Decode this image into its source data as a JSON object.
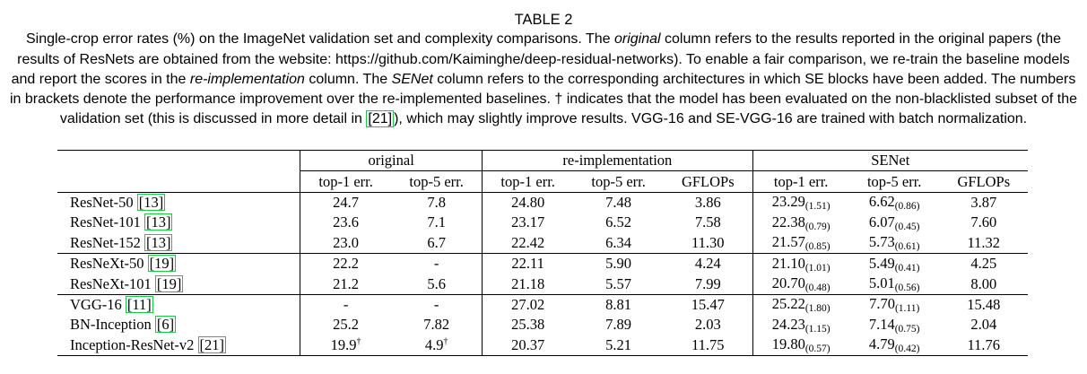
{
  "caption": {
    "title": "TABLE 2",
    "p1": "Single-crop error rates (%) on the ImageNet validation set and complexity comparisons. The ",
    "em1": "original",
    "p2": " column refers to the results reported in the original papers (the results of ResNets are obtained from the website: https://github.com/Kaiminghe/deep-residual-networks). To enable a fair comparison, we re-train the baseline models and report the scores in the ",
    "em2": "re-implementation",
    "p3": " column. The ",
    "em3": "SENet",
    "p4": " column refers to the corresponding architectures in which SE blocks have been added. The numbers in brackets denote the performance improvement over the re-implemented baselines. † indicates that the model has been evaluated on the non-blacklisted subset of the validation set (this is discussed in more detail in ",
    "cite": "[21]",
    "p5": "), which may slightly improve results. VGG-16 and SE-VGG-16 are trained with batch normalization."
  },
  "table": {
    "groups": {
      "original": "original",
      "reimpl": "re-implementation",
      "senet": "SENet"
    },
    "subheaders": {
      "orig_top1": "top-1 err.",
      "orig_top5": "top-5 err.",
      "re_top1": "top-1 err.",
      "re_top5": "top-5 err.",
      "re_gflops": "GFLOPs",
      "se_top1": "top-1 err.",
      "se_top5": "top-5 err.",
      "se_gflops": "GFLOPs"
    },
    "rows": [
      {
        "model": "ResNet-50",
        "ref": "[13]",
        "orig_top1": "24.7",
        "orig_top5": "7.8",
        "re_top1": "24.80",
        "re_top5": "7.48",
        "re_gflops": "3.86",
        "se_top1": "23.29",
        "se_top1_imp": "(1.51)",
        "se_top5": "6.62",
        "se_top5_imp": "(0.86)",
        "se_gflops": "3.87"
      },
      {
        "model": "ResNet-101",
        "ref": "[13]",
        "orig_top1": "23.6",
        "orig_top5": "7.1",
        "re_top1": "23.17",
        "re_top5": "6.52",
        "re_gflops": "7.58",
        "se_top1": "22.38",
        "se_top1_imp": "(0.79)",
        "se_top5": "6.07",
        "se_top5_imp": "(0.45)",
        "se_gflops": "7.60"
      },
      {
        "model": "ResNet-152",
        "ref": "[13]",
        "orig_top1": "23.0",
        "orig_top5": "6.7",
        "re_top1": "22.42",
        "re_top5": "6.34",
        "re_gflops": "11.30",
        "se_top1": "21.57",
        "se_top1_imp": "(0.85)",
        "se_top5": "5.73",
        "se_top5_imp": "(0.61)",
        "se_gflops": "11.32"
      },
      {
        "model": "ResNeXt-50",
        "ref": "[19]",
        "orig_top1": "22.2",
        "orig_top5": "-",
        "re_top1": "22.11",
        "re_top5": "5.90",
        "re_gflops": "4.24",
        "se_top1": "21.10",
        "se_top1_imp": "(1.01)",
        "se_top5": "5.49",
        "se_top5_imp": "(0.41)",
        "se_gflops": "4.25"
      },
      {
        "model": "ResNeXt-101",
        "ref": "[19]",
        "orig_top1": "21.2",
        "orig_top5": "5.6",
        "re_top1": "21.18",
        "re_top5": "5.57",
        "re_gflops": "7.99",
        "se_top1": "20.70",
        "se_top1_imp": "(0.48)",
        "se_top5": "5.01",
        "se_top5_imp": "(0.56)",
        "se_gflops": "8.00"
      },
      {
        "model": "VGG-16",
        "ref": "[11]",
        "orig_top1": "-",
        "orig_top5": "-",
        "re_top1": "27.02",
        "re_top5": "8.81",
        "re_gflops": "15.47",
        "se_top1": "25.22",
        "se_top1_imp": "(1.80)",
        "se_top5": "7.70",
        "se_top5_imp": "(1.11)",
        "se_gflops": "15.48"
      },
      {
        "model": "BN-Inception",
        "ref": "[6]",
        "orig_top1": "25.2",
        "orig_top5": "7.82",
        "re_top1": "25.38",
        "re_top5": "7.89",
        "re_gflops": "2.03",
        "se_top1": "24.23",
        "se_top1_imp": "(1.15)",
        "se_top5": "7.14",
        "se_top5_imp": "(0.75)",
        "se_gflops": "2.04"
      },
      {
        "model": "Inception-ResNet-v2",
        "ref": "[21]",
        "orig_top1": "19.9",
        "orig_top1_mark": "†",
        "orig_top5": "4.9",
        "orig_top5_mark": "†",
        "re_top1": "20.37",
        "re_top5": "5.21",
        "re_gflops": "11.75",
        "se_top1": "19.80",
        "se_top1_imp": "(0.57)",
        "se_top5": "4.79",
        "se_top5_imp": "(0.42)",
        "se_gflops": "11.76"
      }
    ]
  }
}
